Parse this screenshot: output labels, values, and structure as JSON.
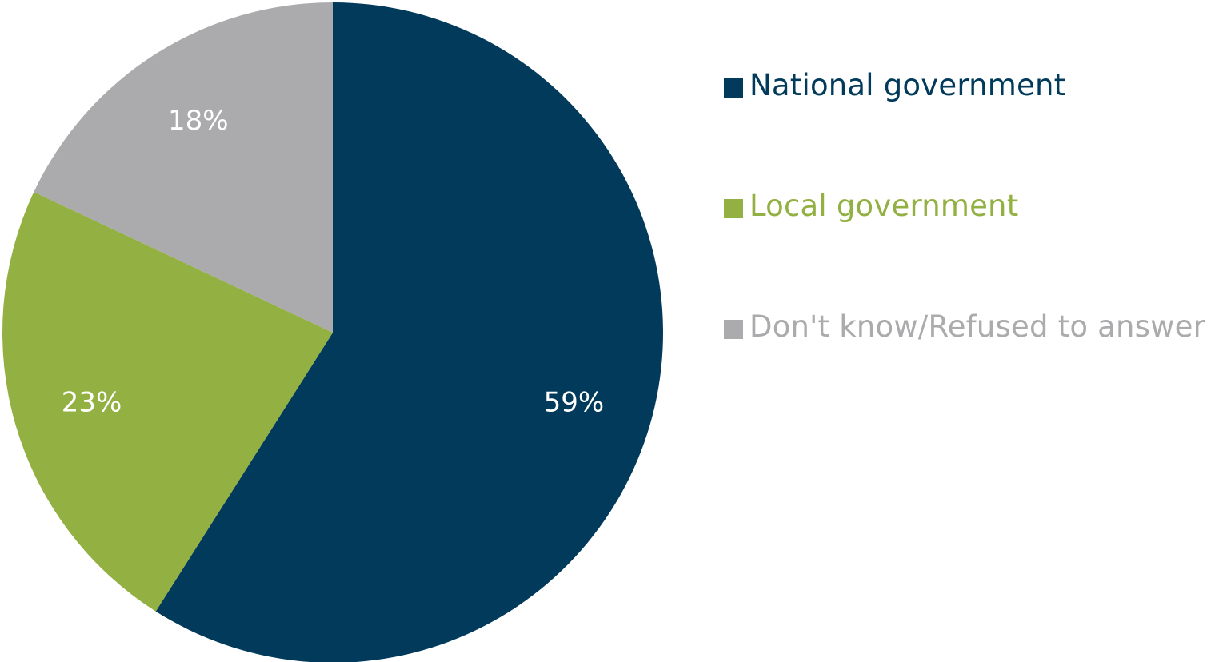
{
  "chart_data": {
    "type": "pie",
    "title": "",
    "slices": [
      {
        "label": "National government",
        "value": 59,
        "display": "59%",
        "color": "#013A5A"
      },
      {
        "label": "Local government",
        "value": 23,
        "display": "23%",
        "color": "#93B043"
      },
      {
        "label": "Don't know/Refused to answer",
        "value": 18,
        "display": "18%",
        "color": "#ABABAD"
      }
    ],
    "start_angle": "12 o'clock",
    "direction": "clockwise",
    "legend_position": "right"
  },
  "legend": {
    "items": [
      {
        "label": "National government",
        "color": "#013A5A"
      },
      {
        "label": "Local government",
        "color": "#93B043"
      },
      {
        "label": "Don't know/Refused to answer",
        "color": "#ABABAD"
      }
    ]
  }
}
